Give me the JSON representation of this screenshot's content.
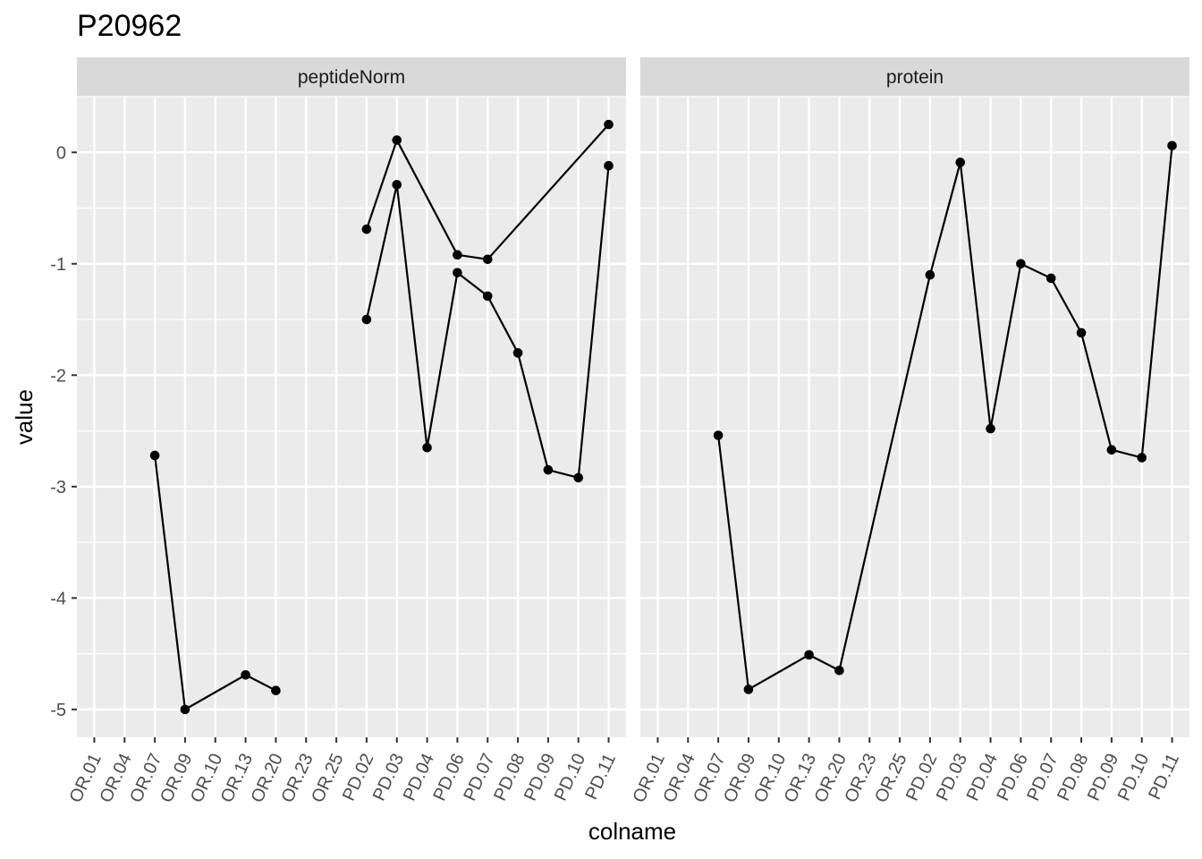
{
  "chart_data": {
    "type": "line",
    "title": "P20962",
    "xlabel": "colname",
    "ylabel": "value",
    "ylim": [
      -5.25,
      0.5
    ],
    "yticks": [
      0,
      -1,
      -2,
      -3,
      -4,
      -5
    ],
    "ytick_labels": [
      "0",
      "-1",
      "-2",
      "-3",
      "-4",
      "-5"
    ],
    "categories": [
      "OR.01",
      "OR.04",
      "OR.07",
      "OR.09",
      "OR.10",
      "OR.13",
      "OR.20",
      "OR.23",
      "OR.25",
      "PD.02",
      "PD.03",
      "PD.04",
      "PD.06",
      "PD.07",
      "PD.08",
      "PD.09",
      "PD.10",
      "PD.11"
    ],
    "grid": true,
    "colors": {
      "panel_bg": "#ebebeb",
      "strip_bg": "#d9d9d9",
      "grid": "#ffffff",
      "line": "#000000",
      "point": "#000000"
    },
    "panels": [
      {
        "strip": "peptideNorm",
        "series": [
          {
            "points": [
              [
                "OR.07",
                -2.72
              ],
              [
                "OR.09",
                -5.0
              ],
              [
                "OR.13",
                -4.69
              ],
              [
                "OR.20",
                -4.83
              ]
            ]
          },
          {
            "points": [
              [
                "PD.02",
                -0.69
              ],
              [
                "PD.03",
                0.11
              ],
              [
                "PD.06",
                -0.92
              ],
              [
                "PD.07",
                -0.96
              ],
              [
                "PD.11",
                0.25
              ]
            ]
          },
          {
            "points": [
              [
                "PD.02",
                -1.5
              ],
              [
                "PD.03",
                -0.29
              ],
              [
                "PD.04",
                -2.65
              ],
              [
                "PD.06",
                -1.08
              ],
              [
                "PD.07",
                -1.29
              ],
              [
                "PD.08",
                -1.8
              ],
              [
                "PD.09",
                -2.85
              ],
              [
                "PD.10",
                -2.92
              ],
              [
                "PD.11",
                -0.12
              ]
            ]
          }
        ]
      },
      {
        "strip": "protein",
        "series": [
          {
            "points": [
              [
                "OR.07",
                -2.54
              ],
              [
                "OR.09",
                -4.82
              ],
              [
                "OR.13",
                -4.51
              ],
              [
                "OR.20",
                -4.65
              ],
              [
                "PD.02",
                -1.1
              ],
              [
                "PD.03",
                -0.09
              ],
              [
                "PD.04",
                -2.48
              ],
              [
                "PD.06",
                -1.0
              ],
              [
                "PD.07",
                -1.13
              ],
              [
                "PD.08",
                -1.62
              ],
              [
                "PD.09",
                -2.67
              ],
              [
                "PD.10",
                -2.74
              ],
              [
                "PD.11",
                0.06
              ]
            ]
          }
        ]
      }
    ]
  }
}
